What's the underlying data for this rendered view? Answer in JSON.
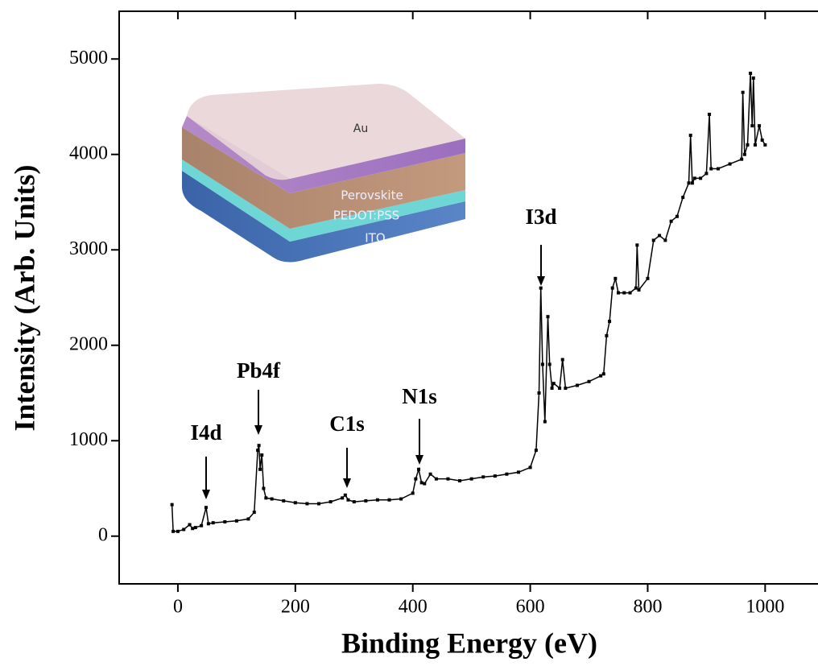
{
  "chart_data": {
    "type": "line",
    "x_label": "Binding Energy (eV)",
    "y_label": "Intensity (Arb. Units)",
    "xlim": [
      -100,
      1090
    ],
    "ylim": [
      -500,
      5500
    ],
    "xticks": [
      0,
      200,
      400,
      600,
      800,
      1000
    ],
    "yticks": [
      0,
      1000,
      2000,
      3000,
      4000,
      5000
    ],
    "color": "#000000",
    "annotations": [
      "I4d",
      "Pb4f",
      "C1s",
      "N1s",
      "I3d"
    ],
    "inset_labels": [
      "Au",
      "Perovskite",
      "PEDOT:PSS",
      "ITO"
    ],
    "x": [
      -10,
      -8,
      0,
      10,
      20,
      25,
      30,
      40,
      48,
      52,
      60,
      80,
      100,
      120,
      130,
      136,
      138,
      140,
      143,
      146,
      150,
      160,
      180,
      200,
      220,
      240,
      260,
      280,
      285,
      290,
      300,
      320,
      340,
      360,
      380,
      400,
      405,
      410,
      415,
      420,
      430,
      440,
      460,
      480,
      500,
      520,
      540,
      560,
      580,
      600,
      610,
      615,
      618,
      621,
      625,
      630,
      633,
      637,
      640,
      650,
      655,
      660,
      680,
      700,
      720,
      725,
      730,
      735,
      740,
      745,
      750,
      760,
      770,
      780,
      782,
      785,
      800,
      810,
      820,
      830,
      840,
      850,
      860,
      870,
      873,
      876,
      880,
      890,
      900,
      905,
      908,
      920,
      940,
      960,
      962,
      965,
      970,
      975,
      978,
      980,
      983,
      990,
      995,
      1000
    ],
    "values": [
      330,
      50,
      50,
      70,
      120,
      80,
      90,
      110,
      300,
      130,
      140,
      150,
      160,
      180,
      250,
      900,
      950,
      700,
      850,
      500,
      400,
      390,
      370,
      350,
      340,
      340,
      360,
      400,
      430,
      380,
      360,
      370,
      380,
      380,
      390,
      450,
      600,
      700,
      560,
      550,
      650,
      600,
      600,
      580,
      600,
      620,
      630,
      650,
      670,
      720,
      900,
      1500,
      2600,
      1800,
      1200,
      2300,
      1800,
      1550,
      1600,
      1550,
      1850,
      1550,
      1580,
      1620,
      1680,
      1700,
      2100,
      2250,
      2600,
      2700,
      2550,
      2550,
      2550,
      2600,
      3050,
      2580,
      2700,
      3100,
      3150,
      3100,
      3300,
      3350,
      3550,
      3700,
      4200,
      3700,
      3750,
      3750,
      3800,
      4420,
      3850,
      3850,
      3900,
      3950,
      4650,
      4000,
      4100,
      4850,
      4300,
      4800,
      4100,
      4300,
      4150,
      4100
    ]
  }
}
